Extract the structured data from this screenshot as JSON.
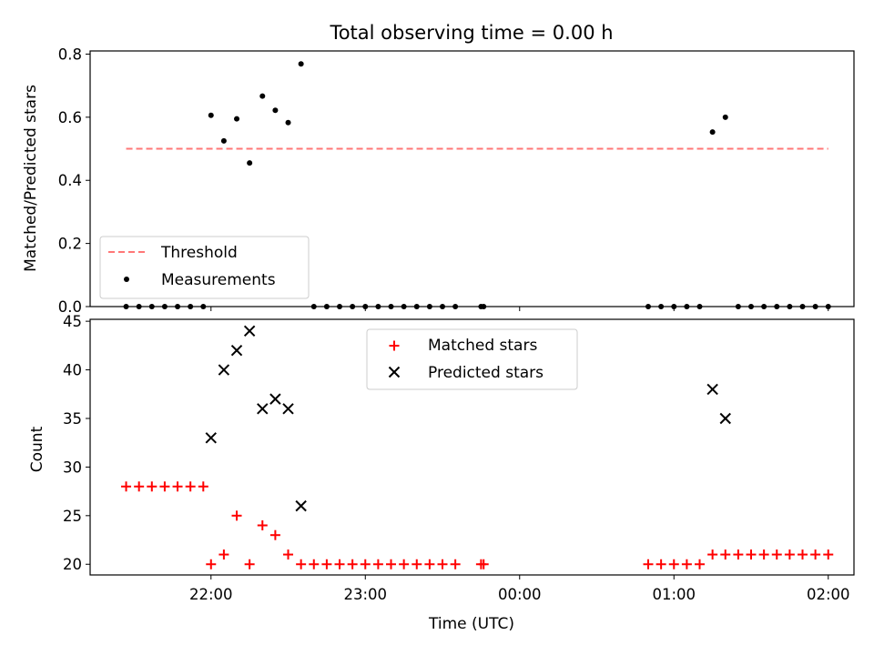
{
  "figure": {
    "title": "Total observing time = 0.00 h"
  },
  "chart_data": [
    {
      "type": "scatter",
      "title": "Total observing time = 0.00 h",
      "ylabel": "Matched/Predicted stars",
      "xlabel": "",
      "x_units": "time (UTC, HH:MM)",
      "xlim": [
        "21:13",
        "02:10"
      ],
      "ylim": [
        0,
        0.81
      ],
      "xticks": [
        "22:00",
        "23:00",
        "00:00",
        "01:00",
        "02:00"
      ],
      "xticklabels_shown": false,
      "yticks": [
        0.0,
        0.2,
        0.4,
        0.6,
        0.8
      ],
      "yticklabels": [
        "0.0",
        "0.2",
        "0.4",
        "0.6",
        "0.8"
      ],
      "grid": false,
      "legend_position": "lower-left",
      "series": [
        {
          "name": "Threshold",
          "kind": "line",
          "style": "dashed",
          "color": "#ff7777",
          "x": [
            "21:27",
            "02:00"
          ],
          "y": [
            0.5,
            0.5
          ]
        },
        {
          "name": "Measurements",
          "kind": "scatter",
          "marker": "dot",
          "color": "#000000",
          "x": [
            "21:27",
            "21:32",
            "21:37",
            "21:42",
            "21:47",
            "21:52",
            "21:57",
            "22:00",
            "22:05",
            "22:10",
            "22:15",
            "22:20",
            "22:25",
            "22:30",
            "22:35",
            "22:40",
            "22:45",
            "22:50",
            "22:55",
            "23:00",
            "23:05",
            "23:10",
            "23:15",
            "23:20",
            "23:25",
            "23:30",
            "23:35",
            "23:45",
            "23:46",
            "00:50",
            "00:55",
            "01:00",
            "01:05",
            "01:10",
            "01:15",
            "01:20",
            "01:25",
            "01:30",
            "01:35",
            "01:40",
            "01:45",
            "01:50",
            "01:55",
            "02:00"
          ],
          "y": [
            0,
            0,
            0,
            0,
            0,
            0,
            0,
            0.606,
            0.525,
            0.595,
            0.455,
            0.667,
            0.622,
            0.583,
            0.769,
            0,
            0,
            0,
            0,
            0,
            0,
            0,
            0,
            0,
            0,
            0,
            0,
            0,
            0,
            0,
            0,
            0,
            0,
            0,
            0.553,
            0.6,
            0,
            0,
            0,
            0,
            0,
            0,
            0,
            0
          ]
        }
      ]
    },
    {
      "type": "scatter",
      "title": "",
      "xlabel": "Time (UTC)",
      "ylabel": "Count",
      "xlim": [
        "21:13",
        "02:10"
      ],
      "ylim": [
        18.9,
        45.2
      ],
      "xticks": [
        "22:00",
        "23:00",
        "00:00",
        "01:00",
        "02:00"
      ],
      "xticklabels": [
        "22:00",
        "23:00",
        "00:00",
        "01:00",
        "02:00"
      ],
      "yticks": [
        20,
        25,
        30,
        35,
        40,
        45
      ],
      "yticklabels": [
        "20",
        "25",
        "30",
        "35",
        "40",
        "45"
      ],
      "grid": false,
      "legend_position": "upper-center",
      "series": [
        {
          "name": "Matched stars",
          "kind": "scatter",
          "marker": "plus",
          "color": "#ff0000",
          "x": [
            "21:27",
            "21:32",
            "21:37",
            "21:42",
            "21:47",
            "21:52",
            "21:57",
            "22:00",
            "22:05",
            "22:10",
            "22:15",
            "22:20",
            "22:25",
            "22:30",
            "22:35",
            "22:40",
            "22:45",
            "22:50",
            "22:55",
            "23:00",
            "23:05",
            "23:10",
            "23:15",
            "23:20",
            "23:25",
            "23:30",
            "23:35",
            "23:45",
            "23:46",
            "00:50",
            "00:55",
            "01:00",
            "01:05",
            "01:10",
            "01:15",
            "01:20",
            "01:25",
            "01:30",
            "01:35",
            "01:40",
            "01:45",
            "01:50",
            "01:55",
            "02:00"
          ],
          "y": [
            28,
            28,
            28,
            28,
            28,
            28,
            28,
            20,
            21,
            25,
            20,
            24,
            23,
            21,
            20,
            20,
            20,
            20,
            20,
            20,
            20,
            20,
            20,
            20,
            20,
            20,
            20,
            20,
            20,
            20,
            20,
            20,
            20,
            20,
            21,
            21,
            21,
            21,
            21,
            21,
            21,
            21,
            21,
            21
          ]
        },
        {
          "name": "Predicted stars",
          "kind": "scatter",
          "marker": "x",
          "color": "#000000",
          "x": [
            "22:00",
            "22:05",
            "22:10",
            "22:15",
            "22:20",
            "22:25",
            "22:30",
            "22:35",
            "01:15",
            "01:20"
          ],
          "y": [
            33,
            40,
            42,
            44,
            36,
            37,
            36,
            26,
            38,
            35
          ]
        }
      ]
    }
  ]
}
